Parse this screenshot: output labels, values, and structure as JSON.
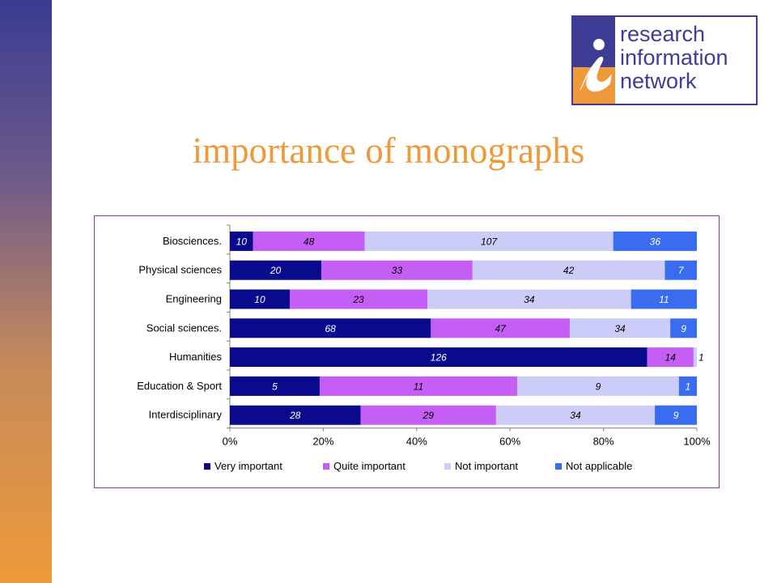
{
  "logo": {
    "lines": [
      "research",
      "information",
      "network"
    ],
    "colors": {
      "blue": "#3d3d95",
      "orange": "#ee9a3a"
    }
  },
  "slide": {
    "title": "importance of monographs",
    "title_color": "#ee9a3a"
  },
  "chart_data": {
    "type": "bar",
    "orientation": "horizontal",
    "stacked": "percent",
    "categories": [
      "Biosciences.",
      "Physical sciences",
      "Engineering",
      "Social sciences.",
      "Humanities",
      "Education & Sport",
      "Interdisciplinary"
    ],
    "series": [
      {
        "name": "Very important",
        "color": "#0a0a8c",
        "values": [
          10,
          20,
          10,
          68,
          126,
          5,
          28
        ]
      },
      {
        "name": "Quite important",
        "color": "#c55ef5",
        "values": [
          48,
          33,
          23,
          47,
          14,
          11,
          29
        ]
      },
      {
        "name": "Not important",
        "color": "#ccccf8",
        "values": [
          107,
          42,
          34,
          34,
          1,
          9,
          34
        ]
      },
      {
        "name": "Not applicable",
        "color": "#3a6cf0",
        "values": [
          36,
          7,
          11,
          9,
          0,
          1,
          9
        ]
      }
    ],
    "xticks": [
      "0%",
      "20%",
      "40%",
      "60%",
      "80%",
      "100%"
    ],
    "xlim": [
      0,
      100
    ],
    "grid": false,
    "legend_position": "bottom"
  }
}
